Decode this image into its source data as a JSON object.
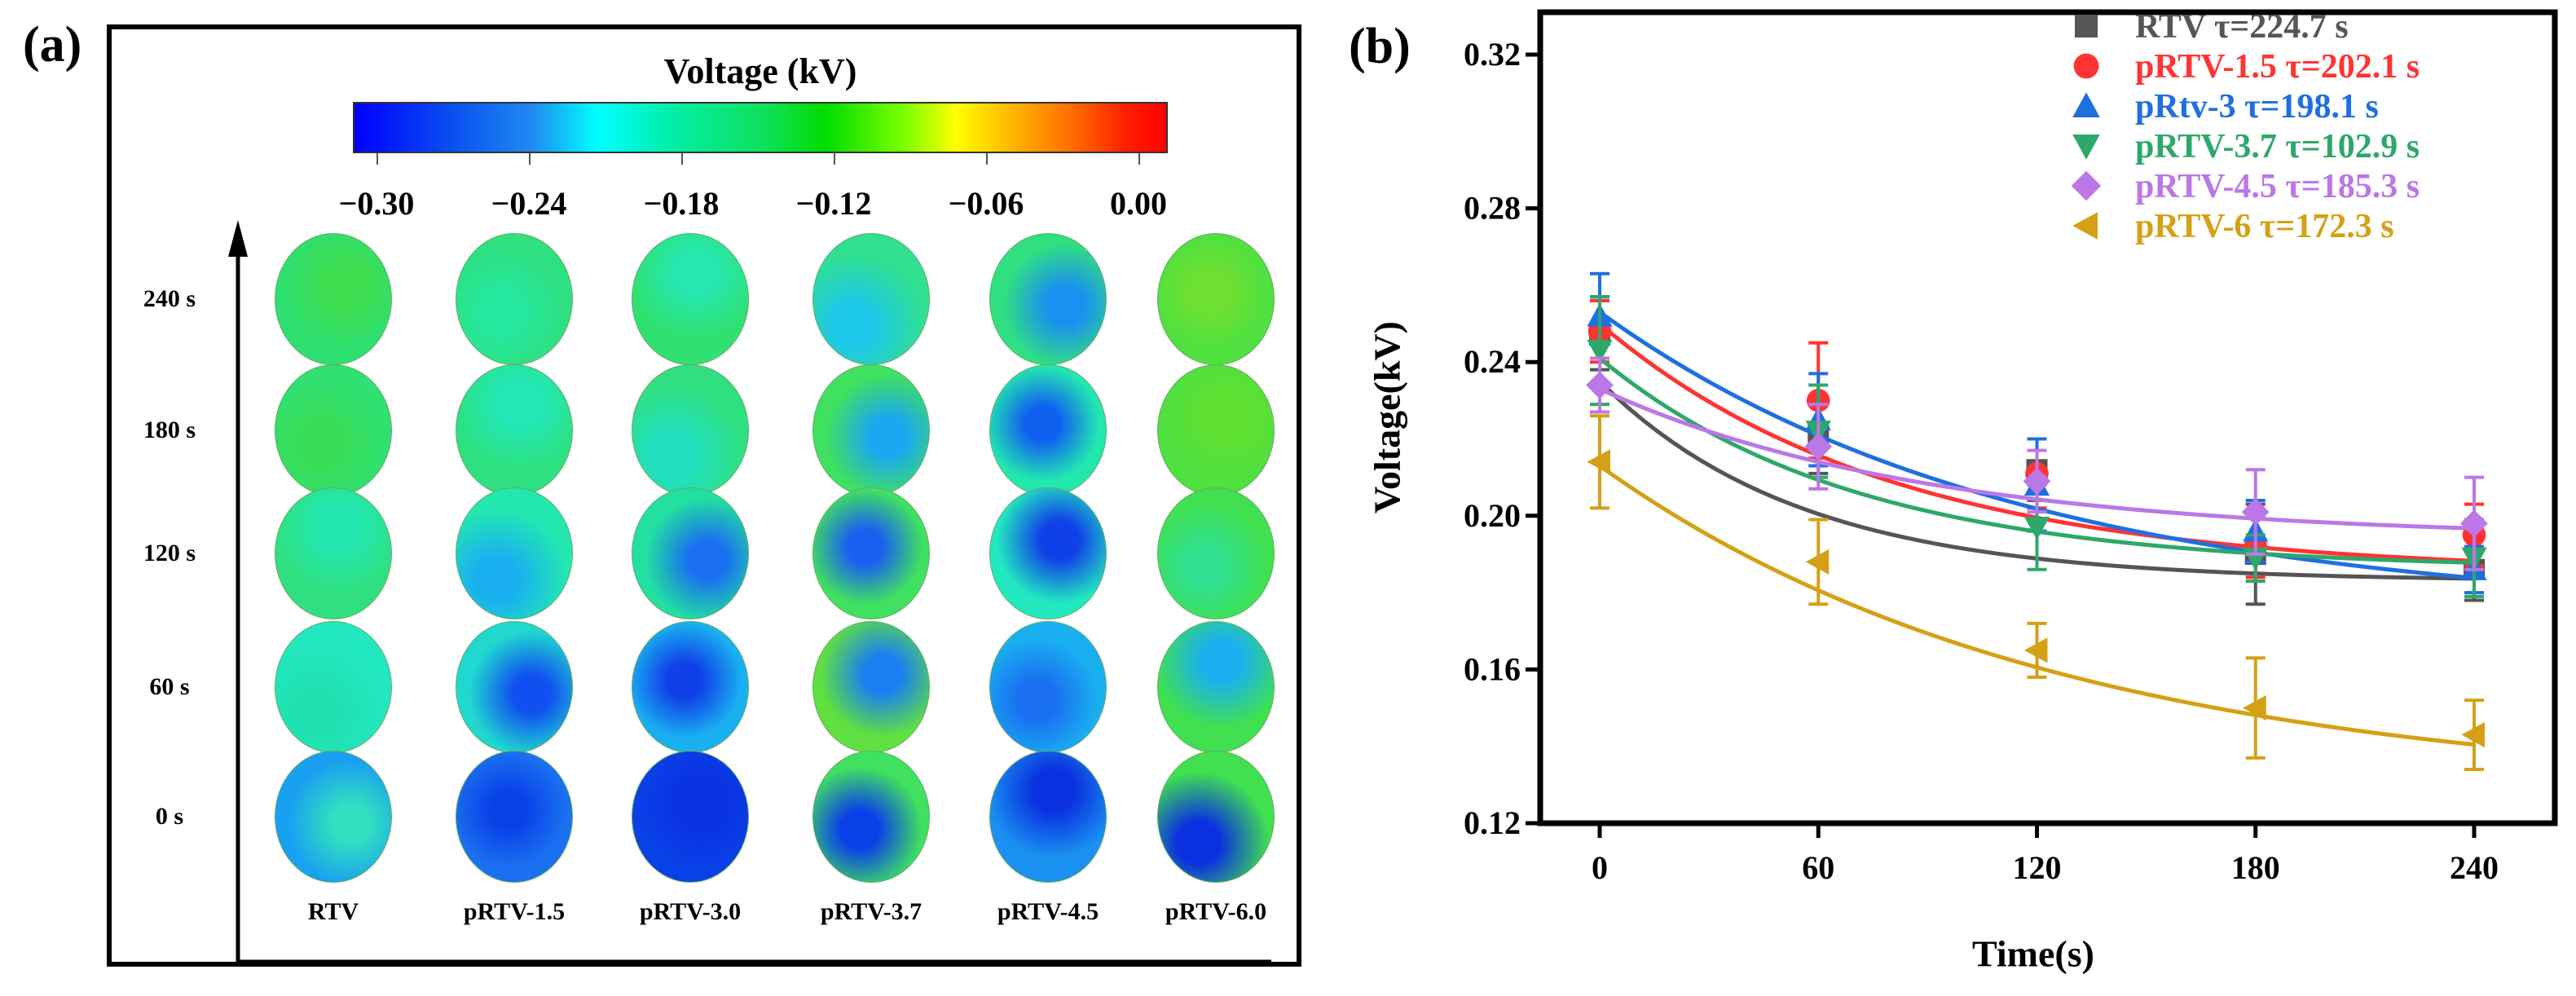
{
  "panel_a": {
    "label": "(a)",
    "colorbar_title": "Voltage (kV)",
    "colorbar_ticks": [
      "−0.30",
      "−0.24",
      "−0.18",
      "−0.12",
      "−0.06",
      "0.00"
    ],
    "rows": [
      "240 s",
      "180 s",
      "120 s",
      "60 s",
      "0 s"
    ],
    "columns": [
      "RTV",
      "pRTV-1.5",
      "pRTV-3.0",
      "pRTV-3.7",
      "pRTV-4.5",
      "pRTV-6.0"
    ],
    "cells": [
      [
        [
          "#2ee070",
          "#40dd50"
        ],
        [
          "#2ee080",
          "#25e8a0"
        ],
        [
          "#30e070",
          "#25e8b0"
        ],
        [
          "#30e090",
          "#1ec8e8"
        ],
        [
          "#30e080",
          "#1a90f0"
        ],
        [
          "#50e040",
          "#70e030"
        ]
      ],
      [
        [
          "#30e070",
          "#38dd55"
        ],
        [
          "#2ee080",
          "#22e8b8"
        ],
        [
          "#30e080",
          "#20e0c0"
        ],
        [
          "#40e060",
          "#1aa8f0"
        ],
        [
          "#22e8b0",
          "#1060f0"
        ],
        [
          "#50e040",
          "#60e030"
        ]
      ],
      [
        [
          "#30e080",
          "#22e8b0"
        ],
        [
          "#22e8b0",
          "#1ab0f0"
        ],
        [
          "#22e0a0",
          "#1a70f0"
        ],
        [
          "#40e060",
          "#1a60f0"
        ],
        [
          "#22e8c0",
          "#1040e8"
        ],
        [
          "#40e050",
          "#30e090"
        ]
      ],
      [
        [
          "#22e8c0",
          "#20e0b0"
        ],
        [
          "#20d8d0",
          "#1050f0"
        ],
        [
          "#1ab0f0",
          "#1040e8"
        ],
        [
          "#60e040",
          "#1a80f0"
        ],
        [
          "#1ab0f0",
          "#1a70f0"
        ],
        [
          "#40e050",
          "#1ab0f0"
        ]
      ],
      [
        [
          "#1aa0f0",
          "#30e0c0"
        ],
        [
          "#1a70f0",
          "#0a40e8"
        ],
        [
          "#0a40e8",
          "#0a30e0"
        ],
        [
          "#40e060",
          "#0a40e8"
        ],
        [
          "#1a90f0",
          "#0a30e0"
        ],
        [
          "#40e050",
          "#0a30e0"
        ]
      ]
    ]
  },
  "chart_data": {
    "type": "scatter",
    "panel_label": "(b)",
    "xlabel": "Time(s)",
    "ylabel": "Voltage(kV)",
    "xlim": [
      -20,
      265
    ],
    "ylim": [
      0.12,
      0.325
    ],
    "xticks": [
      0,
      60,
      120,
      180,
      240
    ],
    "yticks": [
      0.12,
      0.16,
      0.2,
      0.24,
      0.28,
      0.32
    ],
    "ytick_labels": [
      "0.12",
      "0.16",
      "0.20",
      "0.24",
      "0.28",
      "0.32"
    ],
    "legend_position": "top-right",
    "x": [
      0,
      60,
      120,
      180,
      240
    ],
    "series": [
      {
        "name": "RTV",
        "tau_label": "τ=224.7 s",
        "color": "#555555",
        "marker": "square",
        "values": [
          0.247,
          0.221,
          0.212,
          0.19,
          0.186
        ],
        "err": [
          0.009,
          0.01,
          0.008,
          0.013,
          0.008
        ],
        "fit": {
          "y0": 0.235,
          "yinf": 0.183,
          "k": 55
        }
      },
      {
        "name": "pRTV-1.5",
        "tau_label": "τ=202.1 s",
        "color": "#ff3333",
        "marker": "circle",
        "values": [
          0.248,
          0.23,
          0.211,
          0.192,
          0.195
        ],
        "err": [
          0.008,
          0.015,
          0.009,
          0.008,
          0.008
        ],
        "fit": {
          "y0": 0.25,
          "yinf": 0.185,
          "k": 80
        }
      },
      {
        "name": "pRtv-3",
        "tau_label": "τ=198.1 s",
        "color": "#1f6fe0",
        "marker": "triangle-up",
        "values": [
          0.252,
          0.225,
          0.208,
          0.196,
          0.186
        ],
        "err": [
          0.011,
          0.012,
          0.012,
          0.008,
          0.006
        ],
        "fit": {
          "y0": 0.253,
          "yinf": 0.174,
          "k": 115
        }
      },
      {
        "name": "pRTV-3.7",
        "tau_label": "τ=102.9 s",
        "color": "#2ea86a",
        "marker": "triangle-down",
        "values": [
          0.243,
          0.222,
          0.197,
          0.189,
          0.189
        ],
        "err": [
          0.014,
          0.012,
          0.011,
          0.006,
          0.01
        ],
        "fit": {
          "y0": 0.241,
          "yinf": 0.186,
          "k": 70
        }
      },
      {
        "name": "pRTV-4.5",
        "tau_label": "τ=185.3 s",
        "color": "#bb77e6",
        "marker": "diamond",
        "values": [
          0.234,
          0.218,
          0.209,
          0.201,
          0.198
        ],
        "err": [
          0.007,
          0.011,
          0.008,
          0.011,
          0.012
        ],
        "fit": {
          "y0": 0.233,
          "yinf": 0.194,
          "k": 90
        }
      },
      {
        "name": "pRTV-6",
        "tau_label": "τ=172.3 s",
        "color": "#d4a017",
        "marker": "triangle-left",
        "values": [
          0.214,
          0.188,
          0.165,
          0.15,
          0.143
        ],
        "err": [
          0.012,
          0.011,
          0.007,
          0.013,
          0.009
        ],
        "fit": {
          "y0": 0.213,
          "yinf": 0.128,
          "k": 125
        }
      }
    ]
  }
}
